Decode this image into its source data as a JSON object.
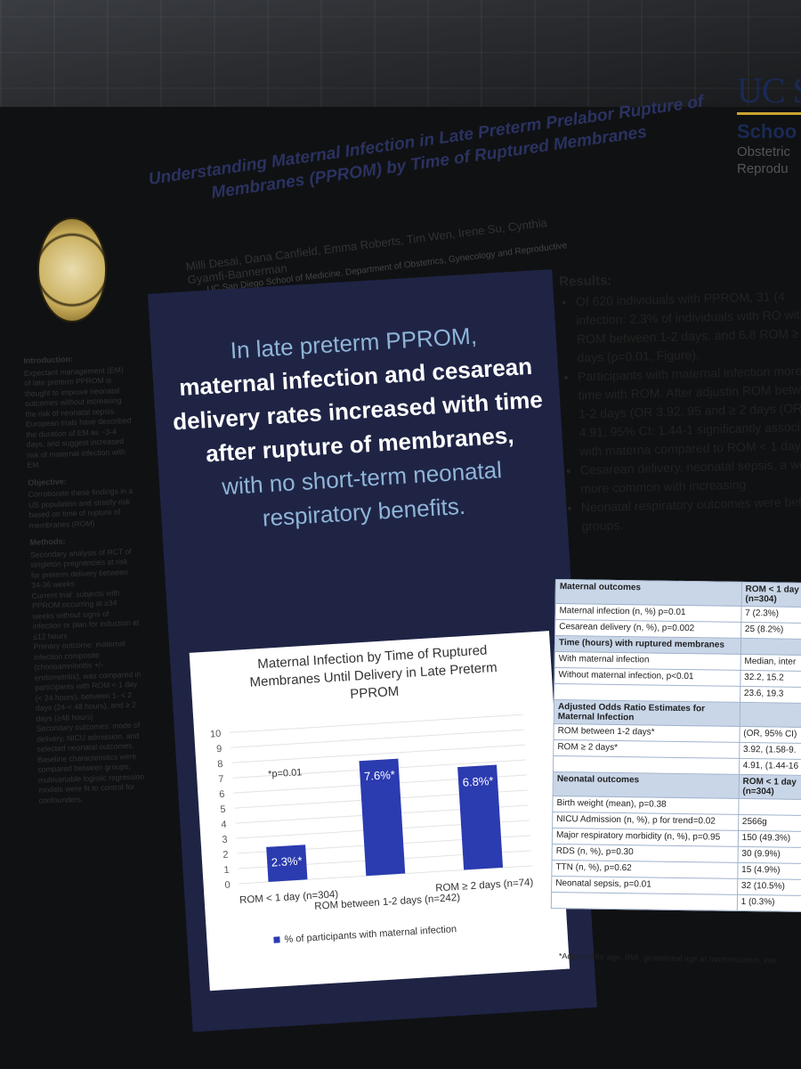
{
  "poster": {
    "title": "Understanding Maternal Infection in Late Preterm Prelabor Rupture of Membranes (PPROM) by Time of Ruptured Membranes",
    "authors": "Milli Desai, Dana Canfield, Emma Roberts, Tim Wen, Irene Su, Cynthia Gyamfi-Bannerman",
    "affiliation": "UC San Diego School of Medicine, Department of Obstetrics, Gynecology and Reproductive Sciences",
    "logo": {
      "wordmark": "UC S",
      "school": "Schoo",
      "dept_line1": "Obstetric",
      "dept_line2": "Reprodu"
    },
    "seal_text": "UNIVERSITY OF CALIFORNIA SAN DIEGO"
  },
  "left": {
    "intro_heading": "Introduction:",
    "intro_body": "Expectant management (EM) of late preterm PPROM is thought to improve neonatal outcomes without increasing the risk of neonatal sepsis. European trials have described the duration of EM as ~3-4 days, and suggest increased risk of maternal infection with EM.",
    "objective_heading": "Objective:",
    "objective_body": "Corroborate these findings in a US population and stratify risk based on time of rupture of membranes (ROM)",
    "methods_heading": "Methods:",
    "methods_items": [
      "Secondary analysis of RCT of singleton pregnancies at risk for preterm delivery between 34-36 weeks",
      "Current trial: subjects with PPROM occurring at ≥34 weeks without signs of infection or plan for induction at ≤12 hours",
      "Primary outcome: maternal infection composite (chorioamnionitis +/- endometritis), was compared in participants with ROM < 1 day (< 24 hours), between 1- < 2 days (24-< 48 hours), and ≥ 2 days (≥48 hours)",
      "Secondary outcomes: mode of delivery, NICU admission, and selected neonatal outcomes.",
      "Baseline characteristics were compared between groups; multivariable logistic regression models were fit to control for confounders."
    ]
  },
  "center": {
    "line1": "In late preterm PPROM,",
    "line2": "maternal infection and cesarean",
    "line3": "delivery rates increased with time",
    "line4": "after rupture of membranes,",
    "line5": "with no short-term neonatal",
    "line6": "respiratory benefits."
  },
  "chart_data": {
    "type": "bar",
    "title": "Maternal Infection by Time of Ruptured Membranes Until Delivery in Late Preterm PPROM",
    "categories": [
      "ROM < 1 day (n=304)",
      "ROM between 1-2 days (n=242)",
      "ROM ≥ 2 days (n=74)"
    ],
    "series": [
      {
        "name": "% of participants with maternal infection",
        "values": [
          2.3,
          7.6,
          6.8
        ]
      }
    ],
    "data_labels": [
      "2.3%*",
      "7.6%*",
      "6.8%*"
    ],
    "annotation": "*p=0.01",
    "ylim": [
      0,
      10
    ],
    "yticks": [
      "0",
      "1",
      "2",
      "3",
      "4",
      "5",
      "6",
      "7",
      "8",
      "9",
      "10"
    ],
    "legend_position": "bottom",
    "color": "#2b3bb0"
  },
  "right": {
    "results_heading": "Results:",
    "bullets": [
      "Of 620 individuals with PPROM, 31 (4 infection: 2.3% of individuals with RO with ROM between 1-2 days, and 6.8 ROM ≥ 2 days (p=0.01, Figure).",
      "Participants with maternal infection more time with ROM. After adjustin ROM between 1-2 days (OR 3.92, 95 and ≥ 2 days (OR 4.91, 95% CI: 1.44-1 significantly associated with materna compared to ROM < 1 day.",
      "Cesarean delivery, neonatal sepsis, a were more common with increasing",
      "Neonatal respiratory outcomes were between groups."
    ]
  },
  "table": {
    "sections": [
      {
        "heading": "Maternal outcomes",
        "col_header": "ROM < 1 day (n=304)",
        "rows": [
          [
            "Maternal infection (n, %) p=0.01",
            "7 (2.3%)"
          ],
          [
            "Cesarean delivery (n, %), p=0.002",
            "25 (8.2%)"
          ]
        ]
      },
      {
        "heading": "Time (hours) with ruptured membranes",
        "col_header": "",
        "rows": [
          [
            "With maternal infection",
            "Median, inter"
          ],
          [
            "Without maternal infection, p<0.01",
            "32.2, 15.2"
          ],
          [
            "",
            "23.6, 19.3"
          ]
        ]
      },
      {
        "heading": "Adjusted Odds Ratio Estimates for Maternal Infection",
        "col_header": "",
        "rows": [
          [
            "ROM between 1-2 days*",
            "(OR, 95% CI)"
          ],
          [
            "ROM ≥ 2 days*",
            "3.92, (1.58-9."
          ],
          [
            "",
            "4.91, (1.44-16"
          ]
        ]
      },
      {
        "heading": "Neonatal outcomes",
        "col_header": "ROM < 1 day (n=304)",
        "rows": [
          [
            "Birth weight (mean), p=0.38",
            ""
          ],
          [
            "NICU Admission (n, %), p for trend=0.02",
            "2566g"
          ],
          [
            "Major respiratory morbidity (n, %), p=0.95",
            "150 (49.3%)"
          ],
          [
            "RDS (n, %), p=0.30",
            "30 (9.9%)"
          ],
          [
            "TTN (n, %), p=0.62",
            "15 (4.9%)"
          ],
          [
            "Neonatal sepsis, p=0.01",
            "32 (10.5%)"
          ],
          [
            "",
            "1 (0.3%)"
          ]
        ]
      }
    ],
    "footnote": "*Adjusted for age, BMI, gestational age at randomization, inte"
  }
}
